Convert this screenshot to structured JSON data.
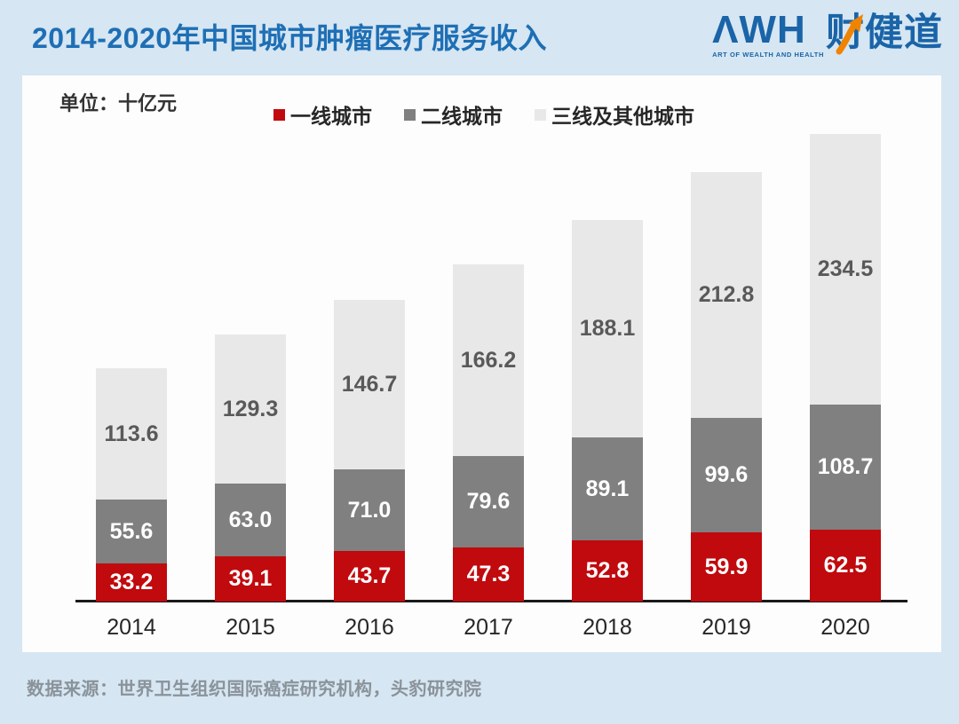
{
  "header": {
    "title": "2014-2020年中国城市肿瘤医疗服务收入",
    "logo": {
      "wordmark": "ΛWH",
      "tagline": "ART OF WEALTH AND HEALTH",
      "cn_name": "财健道",
      "blue": "#1a64a8",
      "arrow_orange": "#f08300"
    }
  },
  "chart": {
    "unit_label": "单位：十亿元"
  },
  "chart_data": {
    "type": "bar",
    "stacked": true,
    "title": "2014-2020年中国城市肿瘤医疗服务收入",
    "unit": "十亿元",
    "categories": [
      "2014",
      "2015",
      "2016",
      "2017",
      "2018",
      "2019",
      "2020"
    ],
    "series": [
      {
        "name": "一线城市",
        "color": "#c00a0e",
        "label_color": "#ffffff",
        "values": [
          33.2,
          39.1,
          43.7,
          47.3,
          52.8,
          59.9,
          62.5
        ],
        "labels": [
          "33.2",
          "39.1",
          "43.7",
          "47.3",
          "52.8",
          "59.9",
          "62.5"
        ]
      },
      {
        "name": "二线城市",
        "color": "#808080",
        "label_color": "#ffffff",
        "values": [
          55.6,
          63.0,
          71.0,
          79.6,
          89.1,
          99.6,
          108.7
        ],
        "labels": [
          "55.6",
          "63.0",
          "71.0",
          "79.6",
          "89.1",
          "99.6",
          "108.7"
        ]
      },
      {
        "name": "三线及其他城市",
        "color": "#e8e8e8",
        "label_color": "#595959",
        "values": [
          113.6,
          129.3,
          146.7,
          166.2,
          188.1,
          212.8,
          234.5
        ],
        "labels": [
          "113.6",
          "129.3",
          "146.7",
          "166.2",
          "188.1",
          "212.8",
          "234.5"
        ]
      }
    ],
    "totals": [
      202.4,
      231.4,
      261.4,
      293.1,
      330.0,
      372.3,
      405.7
    ],
    "ylim": [
      0,
      410
    ],
    "grid": false,
    "legend_position": "top",
    "value_labels": "inside-center"
  },
  "footer": {
    "source": "数据来源：世界卫生组织国际癌症研究机构，头豹研究院"
  }
}
